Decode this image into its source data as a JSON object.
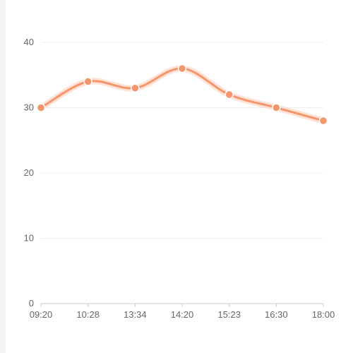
{
  "chart_data": {
    "type": "line",
    "categories": [
      "09:20",
      "10:28",
      "13:34",
      "14:20",
      "15:23",
      "16:30",
      "18:00"
    ],
    "series": [
      {
        "values": [
          30,
          34,
          33,
          36,
          32,
          30,
          28
        ]
      }
    ],
    "title": "",
    "xlabel": "",
    "ylabel": "",
    "ylim": [
      0,
      40
    ],
    "yticks": [
      0,
      10,
      20,
      30,
      40
    ],
    "grid": true,
    "smooth": true,
    "colors": {
      "line": "#f4956a",
      "glow": "#ffd6c6",
      "grid": "#eeeeee",
      "axis": "#cccccc",
      "text": "#666666",
      "point_fill": "#f4956a",
      "point_stroke": "#ffffff"
    }
  }
}
